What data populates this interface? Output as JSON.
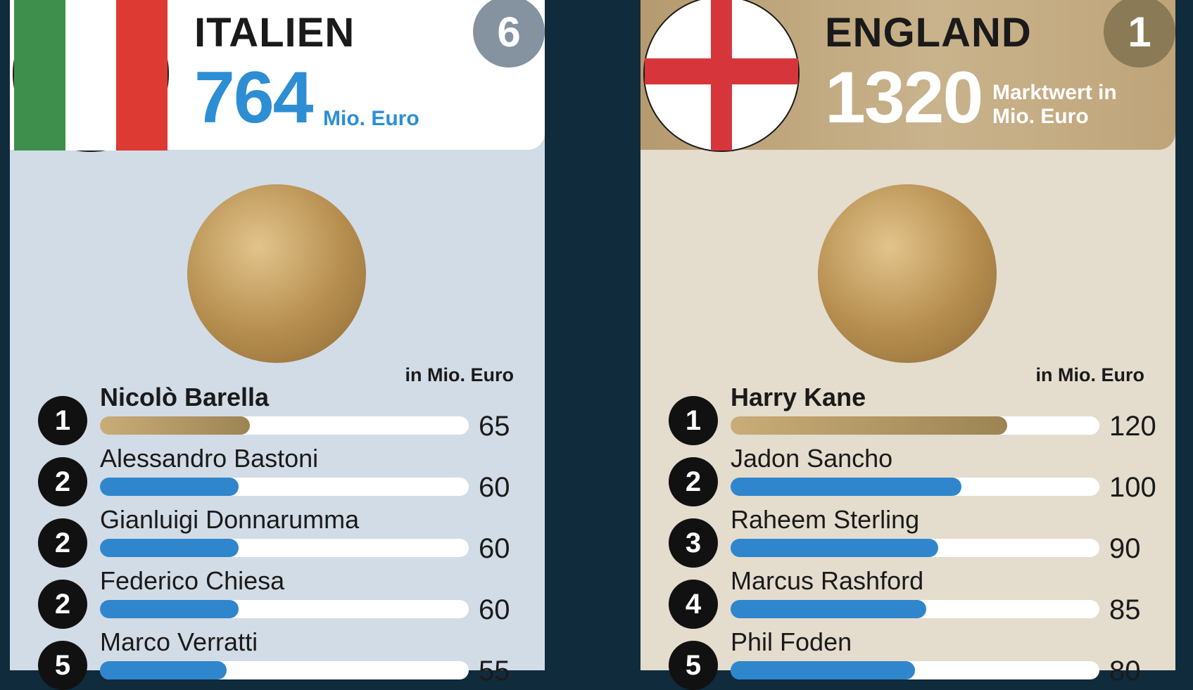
{
  "chart_data": [
    {
      "type": "bar",
      "country": "ITALIEN",
      "total_value": "764",
      "total_unit": "Mio. Euro",
      "rank": "6",
      "unit_note": "in Mio. Euro",
      "categories": [
        "Nicolò Barella",
        "Alessandro Bastoni",
        "Gianluigi Donnarumma",
        "Federico Chiesa",
        "Marco Verratti"
      ],
      "ranks": [
        "1",
        "2",
        "2",
        "2",
        "5"
      ],
      "values": [
        65,
        60,
        60,
        60,
        55
      ],
      "value_labels": [
        "65",
        "60",
        "60",
        "60",
        "55"
      ],
      "xlim": [
        0,
        160
      ],
      "colors": {
        "top": "#b59a66",
        "other": "#2f86cc"
      }
    },
    {
      "type": "bar",
      "country": "ENGLAND",
      "total_value": "1320",
      "total_unit": "Marktwert in Mio. Euro",
      "rank": "1",
      "unit_note": "in Mio. Euro",
      "categories": [
        "Harry Kane",
        "Jadon Sancho",
        "Raheem Sterling",
        "Marcus Rashford",
        "Phil Foden"
      ],
      "ranks": [
        "1",
        "2",
        "3",
        "4",
        "5"
      ],
      "values": [
        120,
        100,
        90,
        85,
        80
      ],
      "value_labels": [
        "120",
        "100",
        "90",
        "85",
        "80"
      ],
      "xlim": [
        0,
        160
      ],
      "colors": {
        "top": "#b59a66",
        "other": "#2f86cc"
      }
    }
  ]
}
